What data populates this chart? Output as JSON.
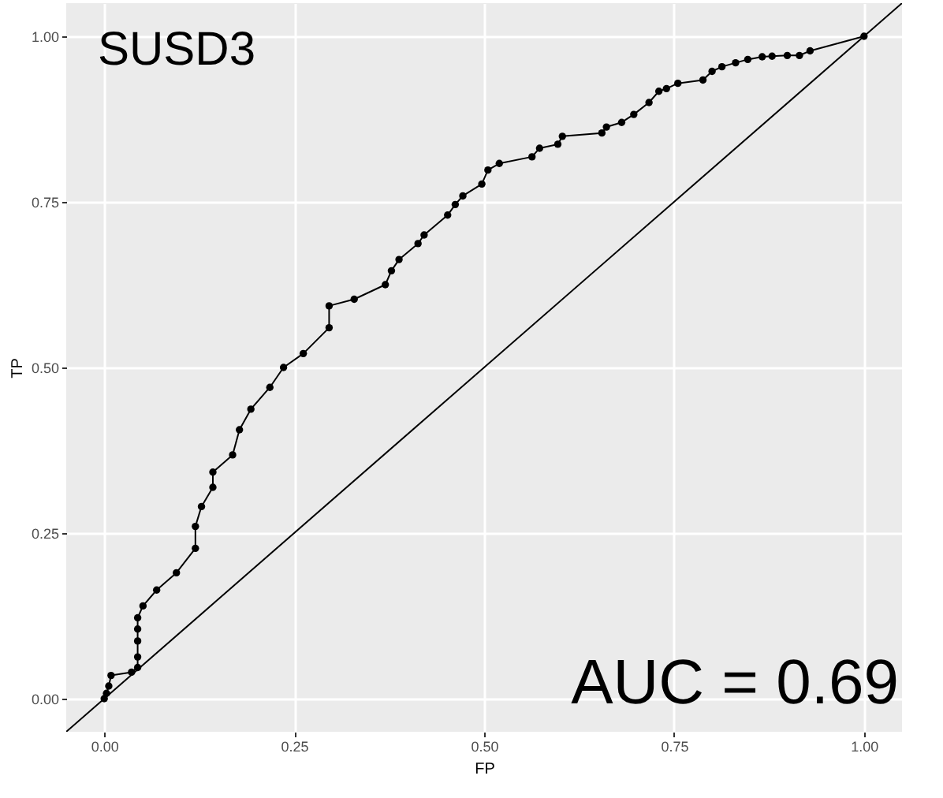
{
  "chart_data": {
    "type": "line",
    "xlabel": "FP",
    "ylabel": "TP",
    "annotations": [
      "SUSD3",
      "AUC = 0.69"
    ],
    "xlim": [
      -0.05,
      1.05
    ],
    "ylim": [
      -0.05,
      1.05
    ],
    "xticks": [
      {
        "value": 0,
        "label": "0.00"
      },
      {
        "value": 0.25,
        "label": "0.25"
      },
      {
        "value": 0.5,
        "label": "0.50"
      },
      {
        "value": 0.75,
        "label": "0.75"
      },
      {
        "value": 1,
        "label": "1.00"
      }
    ],
    "yticks": [
      {
        "value": 0,
        "label": "0.00"
      },
      {
        "value": 0.25,
        "label": "0.25"
      },
      {
        "value": 0.5,
        "label": "0.50"
      },
      {
        "value": 0.75,
        "label": "0.75"
      },
      {
        "value": 1,
        "label": "1.00"
      }
    ],
    "grid": true,
    "series": [
      {
        "color": "#000000",
        "marker": "circle",
        "line_style": "solid",
        "x": [
          0,
          0.003,
          0.006,
          0.009,
          0.036,
          0.044,
          0.044,
          0.044,
          0.044,
          0.044,
          0.051,
          0.069,
          0.095,
          0.12,
          0.12,
          0.128,
          0.143,
          0.143,
          0.169,
          0.178,
          0.193,
          0.218,
          0.236,
          0.262,
          0.296,
          0.296,
          0.329,
          0.37,
          0.378,
          0.388,
          0.413,
          0.421,
          0.452,
          0.462,
          0.472,
          0.497,
          0.505,
          0.52,
          0.563,
          0.573,
          0.597,
          0.603,
          0.655,
          0.661,
          0.681,
          0.697,
          0.717,
          0.73,
          0.74,
          0.755,
          0.788,
          0.8,
          0.813,
          0.831,
          0.847,
          0.866,
          0.879,
          0.899,
          0.915,
          0.929,
          1
        ],
        "values": [
          0,
          0.008,
          0.019,
          0.035,
          0.04,
          0.047,
          0.063,
          0.087,
          0.105,
          0.122,
          0.14,
          0.164,
          0.19,
          0.227,
          0.26,
          0.29,
          0.319,
          0.342,
          0.368,
          0.406,
          0.437,
          0.47,
          0.5,
          0.521,
          0.56,
          0.593,
          0.603,
          0.625,
          0.646,
          0.663,
          0.687,
          0.7,
          0.73,
          0.746,
          0.759,
          0.777,
          0.798,
          0.808,
          0.818,
          0.831,
          0.837,
          0.849,
          0.854,
          0.863,
          0.87,
          0.882,
          0.9,
          0.917,
          0.921,
          0.929,
          0.934,
          0.947,
          0.954,
          0.96,
          0.965,
          0.969,
          0.97,
          0.971,
          0.971,
          0.978,
          1
        ]
      },
      {
        "color": "#000000",
        "marker": "none",
        "line_style": "solid",
        "x": [
          -0.05,
          1.05
        ],
        "values": [
          -0.05,
          1.05
        ]
      }
    ]
  }
}
